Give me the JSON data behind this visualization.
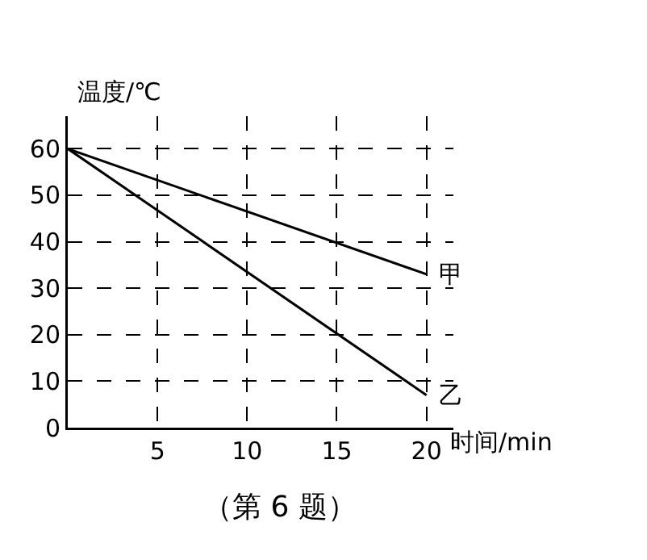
{
  "chart_data": {
    "type": "line",
    "xlabel": "时间/min",
    "ylabel": "温度/℃",
    "x": [
      0,
      20
    ],
    "series": [
      {
        "name": "甲",
        "color": "#000000",
        "values": [
          60,
          33
        ]
      },
      {
        "name": "乙",
        "color": "#000000",
        "values": [
          60,
          7
        ]
      }
    ],
    "xlim": [
      0,
      21.5
    ],
    "ylim": [
      0,
      67
    ],
    "xticks": [
      {
        "value": 0,
        "label": null
      },
      5,
      10,
      15,
      20
    ],
    "yticks": [
      0,
      10,
      20,
      30,
      40,
      50,
      60
    ],
    "grid": true,
    "marker": "none",
    "line_style": "solid",
    "legend": false,
    "annotations": [
      "（第 6 题）"
    ]
  }
}
